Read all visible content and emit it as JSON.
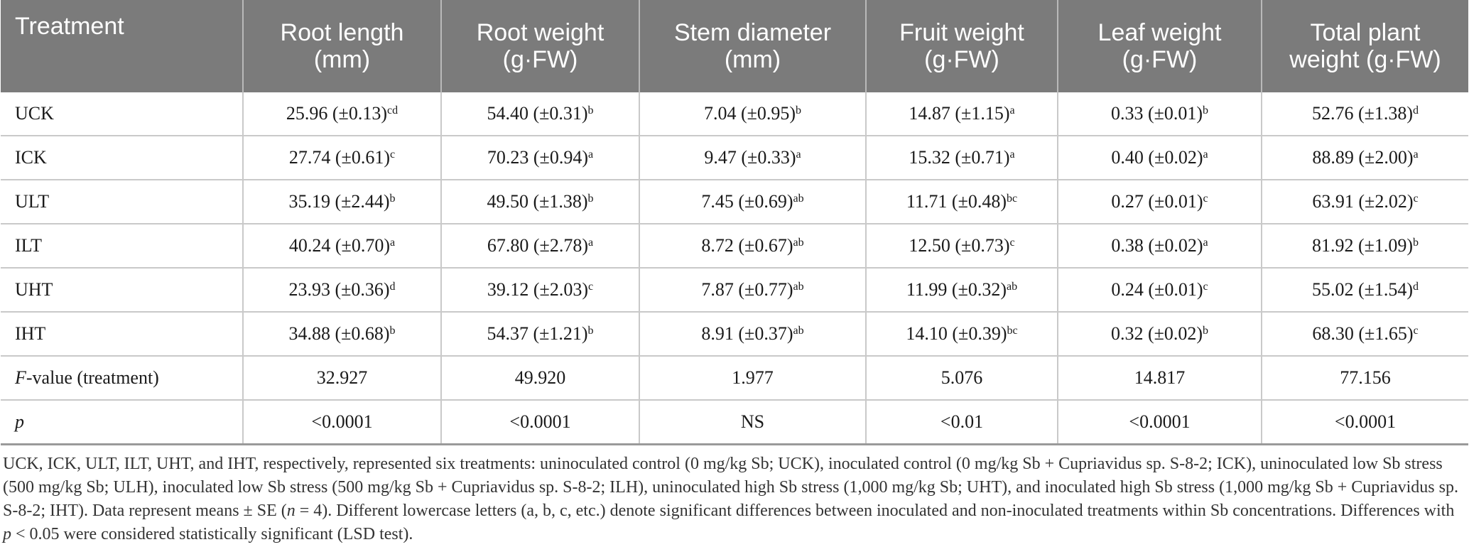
{
  "table": {
    "headers": [
      "Treatment",
      "Root length\n(mm)",
      "Root weight\n(g·FW)",
      "Stem diameter\n(mm)",
      "Fruit weight\n(g·FW)",
      "Leaf weight\n(g·FW)",
      "Total plant\nweight (g·FW)"
    ],
    "rows": [
      {
        "label": "UCK",
        "cells": [
          {
            "v": "25.96 (±0.13)",
            "s": "cd"
          },
          {
            "v": "54.40 (±0.31)",
            "s": "b"
          },
          {
            "v": "7.04 (±0.95)",
            "s": "b"
          },
          {
            "v": "14.87 (±1.15)",
            "s": "a"
          },
          {
            "v": "0.33 (±0.01)",
            "s": "b"
          },
          {
            "v": "52.76 (±1.38)",
            "s": "d"
          }
        ]
      },
      {
        "label": "ICK",
        "cells": [
          {
            "v": "27.74 (±0.61)",
            "s": "c"
          },
          {
            "v": "70.23 (±0.94)",
            "s": "a"
          },
          {
            "v": "9.47 (±0.33)",
            "s": "a"
          },
          {
            "v": "15.32 (±0.71)",
            "s": "a"
          },
          {
            "v": "0.40 (±0.02)",
            "s": "a"
          },
          {
            "v": "88.89 (±2.00)",
            "s": "a"
          }
        ]
      },
      {
        "label": "ULT",
        "cells": [
          {
            "v": "35.19 (±2.44)",
            "s": "b"
          },
          {
            "v": "49.50 (±1.38)",
            "s": "b"
          },
          {
            "v": "7.45 (±0.69)",
            "s": "ab"
          },
          {
            "v": "11.71 (±0.48)",
            "s": "bc"
          },
          {
            "v": "0.27 (±0.01)",
            "s": "c"
          },
          {
            "v": "63.91 (±2.02)",
            "s": "c"
          }
        ]
      },
      {
        "label": "ILT",
        "cells": [
          {
            "v": "40.24 (±0.70)",
            "s": "a"
          },
          {
            "v": "67.80 (±2.78)",
            "s": "a"
          },
          {
            "v": "8.72 (±0.67)",
            "s": "ab"
          },
          {
            "v": "12.50 (±0.73)",
            "s": "c"
          },
          {
            "v": "0.38 (±0.02)",
            "s": "a"
          },
          {
            "v": "81.92 (±1.09)",
            "s": "b"
          }
        ]
      },
      {
        "label": "UHT",
        "cells": [
          {
            "v": "23.93 (±0.36)",
            "s": "d"
          },
          {
            "v": "39.12 (±2.03)",
            "s": "c"
          },
          {
            "v": "7.87 (±0.77)",
            "s": "ab"
          },
          {
            "v": "11.99 (±0.32)",
            "s": "ab"
          },
          {
            "v": "0.24 (±0.01)",
            "s": "c"
          },
          {
            "v": "55.02 (±1.54)",
            "s": "d"
          }
        ]
      },
      {
        "label": "IHT",
        "cells": [
          {
            "v": "34.88 (±0.68)",
            "s": "b"
          },
          {
            "v": "54.37 (±1.21)",
            "s": "b"
          },
          {
            "v": "8.91 (±0.37)",
            "s": "ab"
          },
          {
            "v": "14.10 (±0.39)",
            "s": "bc"
          },
          {
            "v": "0.32 (±0.02)",
            "s": "b"
          },
          {
            "v": "68.30 (±1.65)",
            "s": "c"
          }
        ]
      },
      {
        "label_italic": "F",
        "label": "-value (treatment)",
        "cells": [
          {
            "v": "32.927",
            "s": ""
          },
          {
            "v": "49.920",
            "s": ""
          },
          {
            "v": "1.977",
            "s": ""
          },
          {
            "v": "5.076",
            "s": ""
          },
          {
            "v": "14.817",
            "s": ""
          },
          {
            "v": "77.156",
            "s": ""
          }
        ]
      },
      {
        "label_italic": "p",
        "label": "",
        "cells": [
          {
            "v": "<0.0001",
            "s": ""
          },
          {
            "v": "<0.0001",
            "s": ""
          },
          {
            "v": "NS",
            "s": ""
          },
          {
            "v": "<0.01",
            "s": ""
          },
          {
            "v": "<0.0001",
            "s": ""
          },
          {
            "v": "<0.0001",
            "s": ""
          }
        ]
      }
    ]
  },
  "footnote": {
    "part1": "UCK, ICK, ULT, ILT, UHT, and IHT, respectively, represented six treatments: uninoculated control (0 mg/kg Sb; UCK), inoculated control (0 mg/kg Sb + Cupriavidus sp. S-8-2; ICK), uninoculated low Sb stress (500 mg/kg Sb; ULH), inoculated low Sb stress (500 mg/kg Sb + Cupriavidus sp. S-8-2; ILH), uninoculated high Sb stress (1,000 mg/kg Sb; UHT), and inoculated high Sb stress (1,000 mg/kg Sb + Cupriavidus sp. S-8-2; IHT). Data represent means ± SE (",
    "n_symbol": "n",
    "part2": " = 4). Different lowercase letters (a, b, c, etc.) denote significant differences between inoculated and non-inoculated treatments within Sb concentrations. Differences with ",
    "p_symbol": "p",
    "part3": " < 0.05 were considered statistically significant (LSD test)."
  }
}
